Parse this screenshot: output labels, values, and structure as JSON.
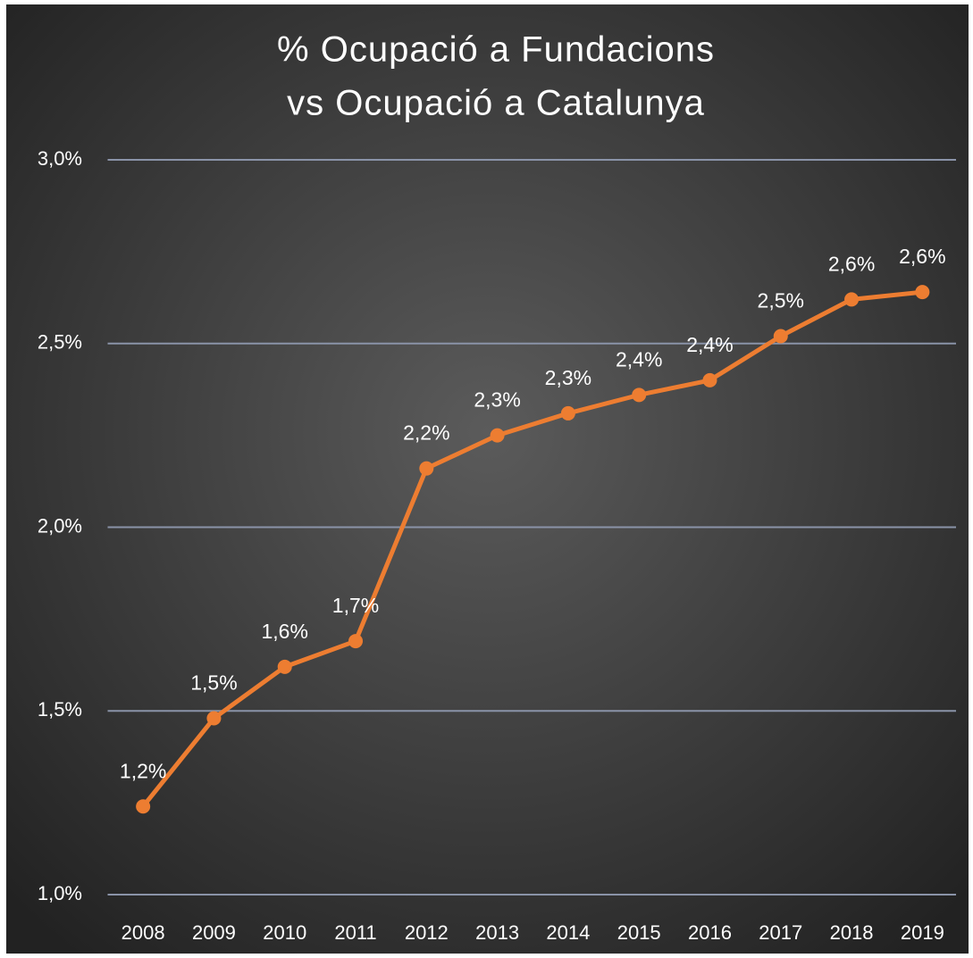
{
  "chart_data": {
    "type": "line",
    "title": [
      "% Ocupació a Fundacions",
      "vs Ocupació a Catalunya"
    ],
    "categories": [
      "2008",
      "2009",
      "2010",
      "2011",
      "2012",
      "2013",
      "2014",
      "2015",
      "2016",
      "2017",
      "2018",
      "2019"
    ],
    "series": [
      {
        "color": "#ed7d31",
        "values": [
          1.24,
          1.48,
          1.62,
          1.69,
          2.16,
          2.25,
          2.31,
          2.36,
          2.4,
          2.52,
          2.62,
          2.64
        ],
        "value_labels": [
          "1,2%",
          "1,5%",
          "1,6%",
          "1,7%",
          "2,2%",
          "2,3%",
          "2,3%",
          "2,4%",
          "2,4%",
          "2,5%",
          "2,6%",
          "2,6%"
        ]
      }
    ],
    "ylim": [
      1.0,
      3.0
    ],
    "yticks": [
      {
        "value": 1.0,
        "label": "1,0%"
      },
      {
        "value": 1.5,
        "label": "1,5%"
      },
      {
        "value": 2.0,
        "label": "2,0%"
      },
      {
        "value": 2.5,
        "label": "2,5%"
      },
      {
        "value": 3.0,
        "label": "3,0%"
      }
    ],
    "grid": true
  }
}
